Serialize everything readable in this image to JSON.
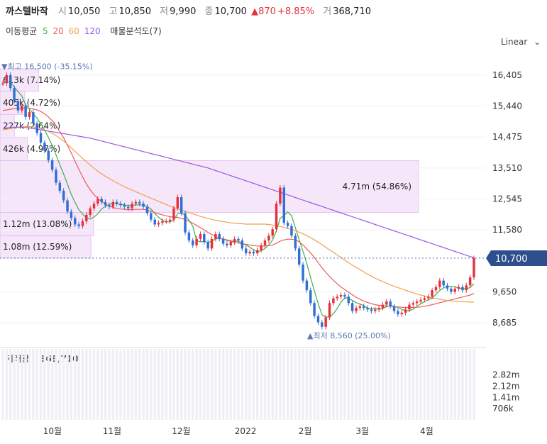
{
  "header": {
    "name": "까스텔바작",
    "open_label": "시",
    "open": "10,050",
    "high_label": "고",
    "high": "10,850",
    "low_label": "저",
    "low": "9,990",
    "close_label": "종",
    "close": "10,700",
    "change": "▲870",
    "change_pct": "+8.85%",
    "volume_label": "거",
    "volume": "368,710"
  },
  "ma_legend": {
    "title": "이동평균",
    "items": [
      {
        "label": "5",
        "color": "#3fae49"
      },
      {
        "label": "20",
        "color": "#f05a5a"
      },
      {
        "label": "60",
        "color": "#f0a050"
      },
      {
        "label": "120",
        "color": "#9b59e0"
      }
    ],
    "volume_profile": "매물분석도(7)"
  },
  "scale_toggle": "Linear",
  "colors": {
    "up": "#e5323c",
    "down": "#2f6fd6",
    "profile": "#f6e6fa",
    "profile_border": "#e0b8ea"
  },
  "chart_data": {
    "type": "candlestick",
    "price_ticks": [
      "16,405",
      "15,440",
      "14,475",
      "13,510",
      "12,545",
      "11,580",
      "9,650",
      "8,685"
    ],
    "price_tick_values": [
      16405,
      15440,
      14475,
      13510,
      12545,
      11580,
      9650,
      8685
    ],
    "ylim": [
      8400,
      16800
    ],
    "x_ticks": [
      "10월",
      "11월",
      "12월",
      "2022",
      "2월",
      "3월",
      "4월"
    ],
    "current_price_label": "10,700",
    "current_price": 10700,
    "high_label": "▼최고 16,500 (-35.15%)",
    "high_value": 16500,
    "low_label": "▲최저 8,560 (25.00%)",
    "low_value": 8560,
    "volume_profile": [
      {
        "label": "613k (7.14%)",
        "from": 15900,
        "to": 16600,
        "fraction": 0.07
      },
      {
        "label": "405k (4.72%)",
        "from": 15180,
        "to": 15900,
        "fraction": 0.045
      },
      {
        "label": "227k (2.64%)",
        "from": 14460,
        "to": 15180,
        "fraction": 0.026
      },
      {
        "label": "426k (4.97%)",
        "from": 13740,
        "to": 14460,
        "fraction": 0.05
      },
      {
        "label": "4.71m (54.86%)",
        "from": 12120,
        "to": 13740,
        "fraction": 0.76
      },
      {
        "label": "1.12m (13.08%)",
        "from": 11400,
        "to": 12120,
        "fraction": 0.17
      },
      {
        "label": "1.08m (12.59%)",
        "from": 10700,
        "to": 11400,
        "fraction": 0.165
      }
    ],
    "volume_title": "거래량",
    "volume_value": "368,710",
    "volume_ticks": [
      "2.82m",
      "2.12m",
      "1.41m",
      "706k"
    ],
    "volume_tick_values": [
      2820000,
      2120000,
      1410000,
      706000
    ],
    "volume_max": 3200000,
    "prices": [
      16150,
      16405,
      16000,
      15600,
      15300,
      15450,
      15100,
      15250,
      14900,
      14600,
      14300,
      14050,
      13750,
      13450,
      13050,
      12800,
      12500,
      12150,
      11950,
      11750,
      11700,
      11850,
      12050,
      12250,
      12400,
      12550,
      12450,
      12350,
      12300,
      12450,
      12400,
      12350,
      12300,
      12250,
      12400,
      12450,
      12400,
      12300,
      12100,
      11900,
      11750,
      11800,
      11850,
      11850,
      11900,
      12250,
      12600,
      12100,
      11500,
      11250,
      11100,
      11300,
      11450,
      11200,
      11000,
      11300,
      11450,
      11300,
      11150,
      11100,
      11200,
      11300,
      11250,
      11000,
      10850,
      10900,
      10850,
      10950,
      11100,
      11250,
      11400,
      11600,
      12400,
      12900,
      11800,
      11700,
      11400,
      11000,
      10500,
      10000,
      9700,
      9300,
      8900,
      8700,
      8560,
      8850,
      9300,
      9450,
      9500,
      9550,
      9500,
      9300,
      9050,
      9150,
      9200,
      9150,
      9100,
      9050,
      9100,
      9150,
      9250,
      9350,
      9200,
      9050,
      8950,
      9000,
      9100,
      9250,
      9300,
      9350,
      9400,
      9450,
      9500,
      9700,
      9800,
      10000,
      9850,
      9750,
      9650,
      9750,
      9800,
      9700,
      9850,
      10100,
      10700
    ],
    "series": [
      {
        "name": "5",
        "color": "#3fae49",
        "values": [
          16150,
          16200,
          16185,
          16031,
          15891,
          15751,
          15490,
          15340,
          15200,
          15060,
          14890,
          14700,
          14460,
          14210,
          13920,
          13610,
          13320,
          13010,
          12690,
          12440,
          12210,
          12070,
          11960,
          11920,
          11980,
          12080,
          12230,
          12320,
          12370,
          12420,
          12400,
          12370,
          12360,
          12340,
          12340,
          12360,
          12360,
          12360,
          12310,
          12230,
          12090,
          11970,
          11880,
          11830,
          11830,
          11890,
          12080,
          12100,
          12040,
          11880,
          11700,
          11250,
          11210,
          11220,
          11190,
          11230,
          11300,
          11310,
          11300,
          11270,
          11230,
          11230,
          11230,
          11150,
          11110,
          11040,
          10960,
          10900,
          10930,
          11000,
          11110,
          11260,
          11550,
          11940,
          12030,
          12140,
          12020,
          11650,
          11270,
          10920,
          10530,
          10100,
          9680,
          9280,
          8940,
          8860,
          8870,
          8970,
          9130,
          9330,
          9460,
          9460,
          9380,
          9310,
          9270,
          9220,
          9140,
          9130,
          9130,
          9110,
          9130,
          9190,
          9220,
          9200,
          9160,
          9110,
          9060,
          9060,
          9110,
          9200,
          9280,
          9350,
          9400,
          9450,
          9570,
          9690,
          9770,
          9830,
          9810,
          9810,
          9760,
          9750,
          9750,
          9780,
          9900
        ]
      },
      {
        "name": "20",
        "color": "#f05a5a",
        "values": [
          15300,
          15320,
          15340,
          15360,
          15370,
          15380,
          15380,
          15370,
          15350,
          15320,
          15270,
          15200,
          15100,
          14980,
          14830,
          14650,
          14450,
          14220,
          13980,
          13720,
          13470,
          13230,
          13010,
          12830,
          12680,
          12560,
          12460,
          12380,
          12320,
          12280,
          12250,
          12230,
          12220,
          12210,
          12210,
          12220,
          12220,
          12220,
          12200,
          12160,
          12120,
          12080,
          12050,
          12020,
          11990,
          11980,
          11970,
          11940,
          11900,
          11850,
          11790,
          11720,
          11650,
          11580,
          11500,
          11440,
          11380,
          11330,
          11290,
          11250,
          11220,
          11190,
          11170,
          11150,
          11130,
          11110,
          11090,
          11080,
          11070,
          11080,
          11090,
          11110,
          11160,
          11230,
          11270,
          11290,
          11290,
          11270,
          11210,
          11110,
          10990,
          10860,
          10720,
          10560,
          10400,
          10260,
          10130,
          10010,
          9900,
          9800,
          9720,
          9640,
          9560,
          9480,
          9420,
          9360,
          9320,
          9280,
          9250,
          9230,
          9220,
          9210,
          9200,
          9190,
          9180,
          9170,
          9160,
          9160,
          9160,
          9170,
          9180,
          9200,
          9220,
          9250,
          9280,
          9310,
          9340,
          9370,
          9400,
          9430,
          9460,
          9490,
          9520,
          9550,
          9600
        ]
      },
      {
        "name": "60",
        "color": "#f0a050",
        "values": [
          14700,
          14720,
          14740,
          14760,
          14780,
          14790,
          14800,
          14800,
          14790,
          14770,
          14740,
          14700,
          14650,
          14590,
          14520,
          14440,
          14350,
          14250,
          14140,
          14030,
          13920,
          13810,
          13700,
          13600,
          13500,
          13410,
          13330,
          13250,
          13180,
          13110,
          13050,
          12990,
          12930,
          12870,
          12820,
          12770,
          12720,
          12670,
          12620,
          12570,
          12520,
          12470,
          12420,
          12370,
          12320,
          12280,
          12240,
          12200,
          12160,
          12120,
          12080,
          12040,
          12000,
          11970,
          11940,
          11910,
          11880,
          11860,
          11840,
          11820,
          11800,
          11790,
          11780,
          11770,
          11760,
          11760,
          11760,
          11760,
          11760,
          11760,
          11750,
          11730,
          11710,
          11690,
          11660,
          11630,
          11590,
          11550,
          11510,
          11460,
          11400,
          11340,
          11270,
          11200,
          11120,
          11040,
          10960,
          10880,
          10800,
          10720,
          10640,
          10560,
          10480,
          10410,
          10340,
          10270,
          10200,
          10140,
          10080,
          10020,
          9970,
          9920,
          9870,
          9820,
          9780,
          9740,
          9700,
          9660,
          9620,
          9580,
          9550,
          9520,
          9490,
          9460,
          9440,
          9420,
          9400,
          9380,
          9370,
          9360,
          9350,
          9340,
          9340,
          9330,
          9330
        ]
      },
      {
        "name": "120",
        "color": "#9b59e0",
        "values": [
          14750,
          14760,
          14770,
          14780,
          14780,
          14780,
          14770,
          14760,
          14740,
          14720,
          14700,
          14680,
          14660,
          14640,
          14620,
          14600,
          14580,
          14560,
          14540,
          14520,
          14500,
          14480,
          14460,
          14440,
          14410,
          14380,
          14350,
          14320,
          14290,
          14260,
          14230,
          14200,
          14170,
          14140,
          14110,
          14080,
          14050,
          14020,
          13990,
          13960,
          13930,
          13900,
          13870,
          13840,
          13810,
          13780,
          13750,
          13720,
          13690,
          13660,
          13630,
          13600,
          13570,
          13540,
          13510,
          13470,
          13430,
          13390,
          13350,
          13310,
          13270,
          13230,
          13190,
          13150,
          13110,
          13070,
          13030,
          12990,
          12950,
          12910,
          12870,
          12830,
          12790,
          12750,
          12710,
          12670,
          12630,
          12590,
          12550,
          12510,
          12470,
          12430,
          12390,
          12350,
          12310,
          12270,
          12230,
          12190,
          12150,
          12110,
          12070,
          12030,
          11990,
          11950,
          11910,
          11870,
          11830,
          11790,
          11750,
          11710,
          11670,
          11630,
          11590,
          11550,
          11510,
          11470,
          11430,
          11390,
          11350,
          11310,
          11270,
          11230,
          11190,
          11150,
          11110,
          11070,
          11030,
          10990,
          10950,
          10910,
          10870,
          10830,
          10790,
          10750,
          10710
        ]
      }
    ]
  }
}
